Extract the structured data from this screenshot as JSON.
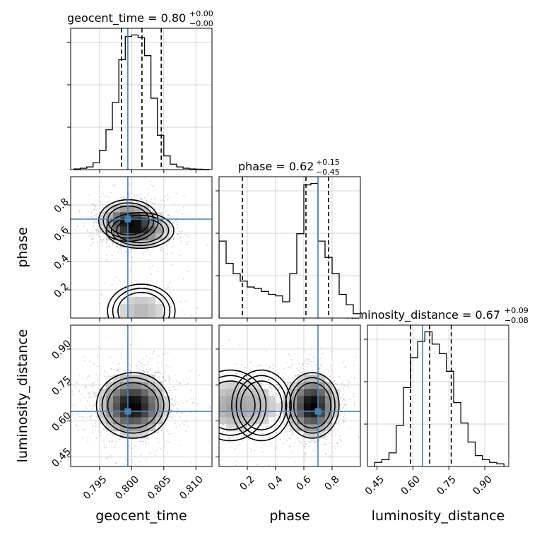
{
  "figure": {
    "type": "corner-plot",
    "parameters": [
      "geocent_time",
      "phase",
      "luminosity_distance"
    ],
    "truth_color": "#4682b4",
    "contour_color": "#000000"
  },
  "titles": {
    "geocent_time": {
      "name": "geocent_time",
      "median": "0.80",
      "plus": "+0.00",
      "minus": "−0.00"
    },
    "phase": {
      "name": "phase",
      "median": "0.62",
      "plus": "+0.15",
      "minus": "−0.45"
    },
    "luminosity_distance": {
      "name": "luminosity_distance",
      "median": "0.67",
      "plus": "+0.09",
      "minus": "−0.08"
    }
  },
  "axis_labels": {
    "x": [
      "geocent_time",
      "phase",
      "luminosity_distance"
    ],
    "y": [
      "phase",
      "luminosity_distance"
    ]
  },
  "chart_data": [
    {
      "type": "histogram",
      "panel": "geocent_time",
      "xlim": [
        0.7905,
        0.8125
      ],
      "x_ticks": [
        "0.795",
        "0.800",
        "0.805",
        "0.810"
      ],
      "x_tick_values": [
        0.795,
        0.8,
        0.805,
        0.81
      ],
      "bin_edges": [
        0.791,
        0.792,
        0.793,
        0.794,
        0.795,
        0.796,
        0.797,
        0.798,
        0.799,
        0.8,
        0.801,
        0.802,
        0.803,
        0.804,
        0.805,
        0.806,
        0.807,
        0.808,
        0.809,
        0.81,
        0.811,
        0.812
      ],
      "counts": [
        0.5,
        1,
        2,
        5,
        14,
        29,
        49,
        80,
        97,
        98,
        96,
        83,
        52,
        25,
        10,
        4,
        2,
        1,
        0.5,
        0.3,
        0.2
      ],
      "quantile_lines": [
        0.7984,
        0.8016,
        0.8046
      ],
      "truth": 0.7994
    },
    {
      "type": "histogram",
      "panel": "phase",
      "xlim": [
        0.0,
        1.0
      ],
      "x_ticks": [
        "0.2",
        "0.4",
        "0.6",
        "0.8"
      ],
      "x_tick_values": [
        0.2,
        0.4,
        0.6,
        0.8
      ],
      "bin_edges": [
        0.0,
        0.05,
        0.1,
        0.15,
        0.2,
        0.25,
        0.3,
        0.35,
        0.4,
        0.45,
        0.5,
        0.55,
        0.6,
        0.65,
        0.7,
        0.75,
        0.8,
        0.85,
        0.9,
        0.95,
        1.0
      ],
      "counts": [
        52,
        37,
        30,
        25,
        21,
        20,
        18,
        16,
        15,
        11,
        30,
        57,
        90,
        91,
        52,
        41,
        30,
        16,
        9,
        3
      ],
      "quantile_lines": [
        0.165,
        0.615,
        0.775
      ],
      "truth": 0.7
    },
    {
      "type": "histogram",
      "panel": "luminosity_distance",
      "xlim": [
        0.41,
        1.0
      ],
      "x_ticks": [
        "0.45",
        "0.60",
        "0.75",
        "0.90"
      ],
      "x_tick_values": [
        0.45,
        0.6,
        0.75,
        0.9
      ],
      "bin_edges": [
        0.44,
        0.47,
        0.5,
        0.53,
        0.56,
        0.59,
        0.62,
        0.65,
        0.68,
        0.71,
        0.74,
        0.77,
        0.8,
        0.83,
        0.86,
        0.89,
        0.92,
        0.95,
        0.98
      ],
      "counts": [
        3,
        5,
        10,
        30,
        58,
        80,
        92,
        99,
        90,
        83,
        70,
        47,
        32,
        18,
        8,
        5,
        3,
        2
      ],
      "quantile_lines": [
        0.59,
        0.67,
        0.76
      ],
      "truth": 0.64
    },
    {
      "type": "heatmap",
      "panel": "geocent_time vs phase",
      "x": "geocent_time",
      "y": "phase",
      "xlim": [
        0.7905,
        0.8125
      ],
      "ylim": [
        0.0,
        1.0
      ],
      "y_ticks": [
        "0.2",
        "0.4",
        "0.6",
        "0.8"
      ],
      "y_tick_values": [
        0.2,
        0.4,
        0.6,
        0.8
      ],
      "truth": [
        0.7994,
        0.7
      ],
      "density_modes": [
        {
          "x": 0.7995,
          "y": 0.69,
          "sx": 0.0022,
          "sy": 0.07,
          "w": 1.0
        },
        {
          "x": 0.8013,
          "y": 0.62,
          "sx": 0.0025,
          "sy": 0.06,
          "w": 0.8
        },
        {
          "x": 0.8015,
          "y": 0.05,
          "sx": 0.0025,
          "sy": 0.09,
          "w": 0.35
        }
      ]
    },
    {
      "type": "heatmap",
      "panel": "geocent_time vs luminosity_distance",
      "x": "geocent_time",
      "y": "luminosity_distance",
      "xlim": [
        0.7905,
        0.8125
      ],
      "ylim": [
        0.41,
        1.0
      ],
      "y_ticks": [
        "0.45",
        "0.60",
        "0.75",
        "0.90"
      ],
      "y_tick_values": [
        0.45,
        0.6,
        0.75,
        0.9
      ],
      "truth": [
        0.7994,
        0.64
      ],
      "density_modes": [
        {
          "x": 0.8002,
          "y": 0.665,
          "sx": 0.0027,
          "sy": 0.065,
          "w": 1.0
        }
      ]
    },
    {
      "type": "heatmap",
      "panel": "phase vs luminosity_distance",
      "x": "phase",
      "y": "luminosity_distance",
      "xlim": [
        0.0,
        1.0
      ],
      "ylim": [
        0.41,
        1.0
      ],
      "truth": [
        0.7,
        0.64
      ],
      "density_modes": [
        {
          "x": 0.66,
          "y": 0.665,
          "sx": 0.09,
          "sy": 0.065,
          "w": 1.0
        },
        {
          "x": 0.08,
          "y": 0.665,
          "sx": 0.12,
          "sy": 0.07,
          "w": 0.3
        },
        {
          "x": 0.3,
          "y": 0.665,
          "sx": 0.1,
          "sy": 0.07,
          "w": 0.18
        }
      ]
    }
  ]
}
